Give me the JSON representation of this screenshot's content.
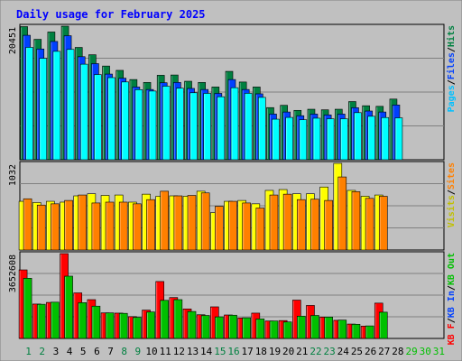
{
  "chart_data": [
    {
      "type": "bar",
      "title": "Daily usage for February 2025",
      "panel": "hits-files-pages",
      "ymax_label": "20451",
      "legend": [
        "Pages",
        "/",
        "Files",
        "/",
        "Hits"
      ],
      "series": [
        {
          "name": "Hits",
          "color": "#008040",
          "values": [
            18740,
            16950,
            17980,
            18800,
            15810,
            14780,
            13190,
            12580,
            11290,
            10880,
            11890,
            11930,
            11050,
            10880,
            10240,
            12440,
            10940,
            10240,
            7340,
            7660,
            6950,
            7110,
            7030,
            7110,
            8190,
            7600,
            7520,
            8540,
            0,
            0,
            0
          ]
        },
        {
          "name": "Files",
          "color": "#0040ff",
          "values": [
            17520,
            15590,
            16650,
            17460,
            14510,
            13530,
            12060,
            11480,
            10240,
            9890,
            10840,
            10880,
            10040,
            9890,
            9340,
            11290,
            9890,
            9280,
            6430,
            6720,
            6200,
            6430,
            6310,
            6430,
            7330,
            6860,
            6720,
            7710,
            0,
            0,
            0
          ]
        },
        {
          "name": "Pages",
          "color": "#00ffff",
          "values": [
            15820,
            14270,
            15260,
            15530,
            13450,
            11990,
            11560,
            10950,
            9870,
            9670,
            10350,
            10070,
            9430,
            9340,
            8870,
            10140,
            9350,
            8780,
            5710,
            5960,
            5630,
            5850,
            5770,
            5770,
            6630,
            6120,
            5940,
            5900,
            0,
            0,
            0
          ]
        }
      ]
    },
    {
      "type": "bar",
      "panel": "visits-sites",
      "ymax_label": "1032",
      "legend": [
        "Visits",
        "/",
        "Sites"
      ],
      "series": [
        {
          "name": "Visits",
          "color": "#ffff00",
          "values": [
            580,
            565,
            580,
            570,
            645,
            670,
            650,
            655,
            570,
            665,
            640,
            645,
            640,
            700,
            445,
            580,
            590,
            550,
            710,
            720,
            670,
            670,
            750,
            1032,
            710,
            640,
            655,
            0,
            0,
            0,
            0
          ]
        },
        {
          "name": "Sites",
          "color": "#ff8000",
          "values": [
            610,
            535,
            550,
            590,
            655,
            560,
            570,
            570,
            550,
            600,
            700,
            645,
            650,
            680,
            520,
            580,
            560,
            500,
            655,
            665,
            600,
            605,
            590,
            870,
            695,
            615,
            640,
            0,
            0,
            0,
            0
          ]
        }
      ]
    },
    {
      "type": "bar",
      "panel": "kbytes",
      "ymax_label": "3652608",
      "legend": [
        "KB F",
        "/",
        "KB In",
        "/",
        "KB Out"
      ],
      "series": [
        {
          "name": "KB F",
          "color": "#ff0000",
          "values": [
            2950000,
            1480000,
            1550000,
            3650000,
            1960000,
            1670000,
            1100000,
            1090000,
            940000,
            1220000,
            2450000,
            1760000,
            1270000,
            1020000,
            1360000,
            1010000,
            880000,
            1090000,
            750000,
            770000,
            1650000,
            1420000,
            920000,
            780000,
            620000,
            530000,
            1520000,
            0,
            0,
            0,
            0
          ]
        },
        {
          "name": "KB Out",
          "color": "#00c000",
          "values": [
            2590000,
            1470000,
            1560000,
            2680000,
            1540000,
            1390000,
            1100000,
            1080000,
            910000,
            1140000,
            1640000,
            1670000,
            1160000,
            990000,
            930000,
            1000000,
            890000,
            840000,
            750000,
            710000,
            960000,
            990000,
            920000,
            790000,
            610000,
            540000,
            1130000,
            0,
            0,
            0,
            0
          ]
        }
      ]
    }
  ],
  "x_days": [
    "1",
    "2",
    "3",
    "4",
    "5",
    "6",
    "7",
    "8",
    "9",
    "10",
    "11",
    "12",
    "13",
    "14",
    "15",
    "16",
    "17",
    "18",
    "19",
    "20",
    "21",
    "22",
    "23",
    "24",
    "25",
    "26",
    "27",
    "28",
    "29",
    "30",
    "31"
  ],
  "weekend_days": [
    1,
    2,
    8,
    9,
    15,
    16,
    22,
    23
  ],
  "future_days": [
    29,
    30,
    31
  ],
  "colors": {
    "background": "#c0c0c0",
    "plot": "#c0c0c0",
    "title": "#0000ff",
    "axis_text": "#000000",
    "weekend_label": "#008040",
    "future_label": "#00c000",
    "gridline": "#808080"
  }
}
